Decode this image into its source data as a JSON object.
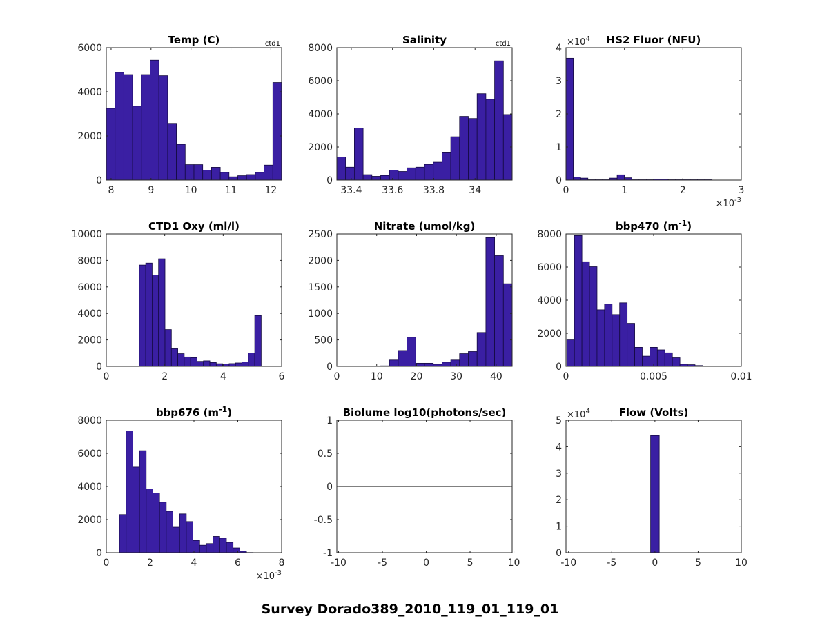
{
  "figure": {
    "title": "Survey Dorado389_2010_119_01_119_01"
  },
  "colors": {
    "bar_fill": "#3a1fa3",
    "bar_stroke": "#140a40",
    "axis": "#262626",
    "text": "#262626"
  },
  "chart_data": [
    {
      "type": "bar",
      "title": "Temp (C)",
      "corner_label": "ctd1",
      "x_ticks": [
        "8",
        "9",
        "10",
        "11",
        "12"
      ],
      "x_tick_values": [
        8,
        9,
        10,
        11,
        12
      ],
      "y_ticks": [
        "0",
        "2000",
        "4000",
        "6000"
      ],
      "y_tick_values": [
        0,
        2000,
        4000,
        6000
      ],
      "xlim": [
        7.88,
        12.27
      ],
      "ylim": [
        0,
        6000
      ],
      "bin_start": 7.88,
      "bin_width": 0.2195,
      "values": [
        3250,
        4880,
        4780,
        3350,
        4780,
        5430,
        4730,
        2570,
        1620,
        700,
        700,
        450,
        580,
        350,
        150,
        200,
        250,
        350,
        680,
        4420
      ]
    },
    {
      "type": "bar",
      "title": "Salinity",
      "corner_label": "ctd1",
      "x_ticks": [
        "33.4",
        "33.6",
        "33.8",
        "34"
      ],
      "x_tick_values": [
        33.4,
        33.6,
        33.8,
        34.0
      ],
      "y_ticks": [
        "0",
        "2000",
        "4000",
        "6000",
        "8000"
      ],
      "y_tick_values": [
        0,
        2000,
        4000,
        6000,
        8000
      ],
      "xlim": [
        33.33,
        34.18
      ],
      "ylim": [
        0,
        8000
      ],
      "bin_start": 33.33,
      "bin_width": 0.0425,
      "values": [
        1400,
        780,
        3150,
        330,
        230,
        280,
        600,
        520,
        740,
        780,
        950,
        1080,
        1650,
        2620,
        3850,
        3720,
        5220,
        4880,
        7200,
        3960
      ]
    },
    {
      "type": "bar",
      "title": "HS2 Fluor (NFU)",
      "exponent_y": "×10^4",
      "exponent_x": "×10^-3",
      "x_ticks": [
        "0",
        "1",
        "2",
        "3"
      ],
      "x_tick_values": [
        0,
        1,
        2,
        3
      ],
      "y_ticks": [
        "0",
        "1",
        "2",
        "3",
        "4"
      ],
      "y_tick_values": [
        0,
        1,
        2,
        3,
        4
      ],
      "xlim": [
        0,
        3
      ],
      "ylim": [
        0,
        4
      ],
      "bin_start": 0,
      "bin_width": 0.125,
      "values": [
        3.68,
        0.09,
        0.06,
        0.01,
        0.01,
        0.01,
        0.06,
        0.16,
        0.07,
        0.01,
        0.01,
        0.01,
        0.03,
        0.03,
        0.01,
        0.01,
        0.01,
        0.01,
        0.01,
        0.01
      ]
    },
    {
      "type": "bar",
      "title": "CTD1 Oxy (ml/l)",
      "x_ticks": [
        "0",
        "2",
        "4",
        "6"
      ],
      "x_tick_values": [
        0,
        2,
        4,
        6
      ],
      "y_ticks": [
        "0",
        "2000",
        "4000",
        "6000",
        "8000",
        "10000"
      ],
      "y_tick_values": [
        0,
        2000,
        4000,
        6000,
        8000,
        10000
      ],
      "xlim": [
        0,
        6
      ],
      "ylim": [
        0,
        10000
      ],
      "bin_start": 1.13,
      "bin_width": 0.2195,
      "values": [
        7650,
        7800,
        6900,
        8120,
        2780,
        1330,
        960,
        710,
        660,
        380,
        420,
        290,
        200,
        180,
        210,
        260,
        340,
        1020,
        3840
      ]
    },
    {
      "type": "bar",
      "title": "Nitrate (umol/kg)",
      "x_ticks": [
        "0",
        "10",
        "20",
        "30",
        "40"
      ],
      "x_tick_values": [
        0,
        10,
        20,
        30,
        40
      ],
      "y_ticks": [
        "0",
        "500",
        "1000",
        "1500",
        "2000",
        "2500"
      ],
      "y_tick_values": [
        0,
        500,
        1000,
        1500,
        2000,
        2500
      ],
      "xlim": [
        0,
        44
      ],
      "ylim": [
        0,
        2500
      ],
      "bin_start": 0,
      "bin_width": 2.2,
      "values": [
        5,
        5,
        5,
        5,
        5,
        10,
        120,
        300,
        550,
        60,
        60,
        40,
        80,
        120,
        240,
        280,
        640,
        2430,
        2090,
        1560
      ]
    },
    {
      "type": "bar",
      "title": "bbp470 (m",
      "title_sup": "-1",
      "title_tail": ")",
      "x_ticks": [
        "0",
        "0.005",
        "0.01"
      ],
      "x_tick_values": [
        0,
        0.005,
        0.01
      ],
      "y_ticks": [
        "0",
        "2000",
        "4000",
        "6000",
        "8000"
      ],
      "y_tick_values": [
        0,
        2000,
        4000,
        6000,
        8000
      ],
      "xlim": [
        0,
        0.01
      ],
      "ylim": [
        0,
        8000
      ],
      "bin_start": 5e-05,
      "bin_width": 0.00043,
      "values": [
        1600,
        7900,
        6320,
        6020,
        3420,
        3760,
        3130,
        3840,
        2600,
        1150,
        620,
        1150,
        1000,
        820,
        520,
        130,
        100,
        50,
        20,
        10
      ]
    },
    {
      "type": "bar",
      "title": "bbp676 (m",
      "title_sup": "-1",
      "title_tail": ")",
      "exponent_x": "×10^-3",
      "x_ticks": [
        "0",
        "2",
        "4",
        "6",
        "8"
      ],
      "x_tick_values": [
        0,
        2,
        4,
        6,
        8
      ],
      "y_ticks": [
        "0",
        "2000",
        "4000",
        "6000",
        "8000"
      ],
      "y_tick_values": [
        0,
        2000,
        4000,
        6000,
        8000
      ],
      "xlim": [
        0,
        8
      ],
      "ylim": [
        0,
        8000
      ],
      "bin_start": 0.6,
      "bin_width": 0.305,
      "values": [
        2300,
        7350,
        5170,
        6160,
        3850,
        3600,
        3050,
        2500,
        1540,
        2340,
        1880,
        740,
        450,
        550,
        980,
        880,
        620,
        290,
        90,
        10
      ]
    },
    {
      "type": "line",
      "title": "Biolume log10(photons/sec)",
      "x_ticks": [
        "-10",
        "-5",
        "0",
        "5",
        "10"
      ],
      "x_tick_values": [
        -10,
        -5,
        0,
        5,
        10
      ],
      "y_ticks": [
        "-1",
        "-0.5",
        "0",
        "0.5",
        "1"
      ],
      "y_tick_values": [
        -1,
        -0.5,
        0,
        0.5,
        1
      ],
      "xlim": [
        -10.2,
        9.8
      ],
      "ylim": [
        -1,
        1
      ],
      "x": [
        -10.2,
        9.8
      ],
      "values": [
        0,
        0
      ]
    },
    {
      "type": "bar",
      "title": "Flow (Volts)",
      "exponent_y": "×10^4",
      "x_ticks": [
        "-10",
        "-5",
        "0",
        "5",
        "10"
      ],
      "x_tick_values": [
        -10,
        -5,
        0,
        5,
        10
      ],
      "y_ticks": [
        "0",
        "1",
        "2",
        "3",
        "4",
        "5"
      ],
      "y_tick_values": [
        0,
        1,
        2,
        3,
        4,
        5
      ],
      "xlim": [
        -10.3,
        10
      ],
      "ylim": [
        0,
        5
      ],
      "bin_start": -0.5,
      "bin_width": 1.0,
      "values": [
        4.42
      ]
    }
  ]
}
